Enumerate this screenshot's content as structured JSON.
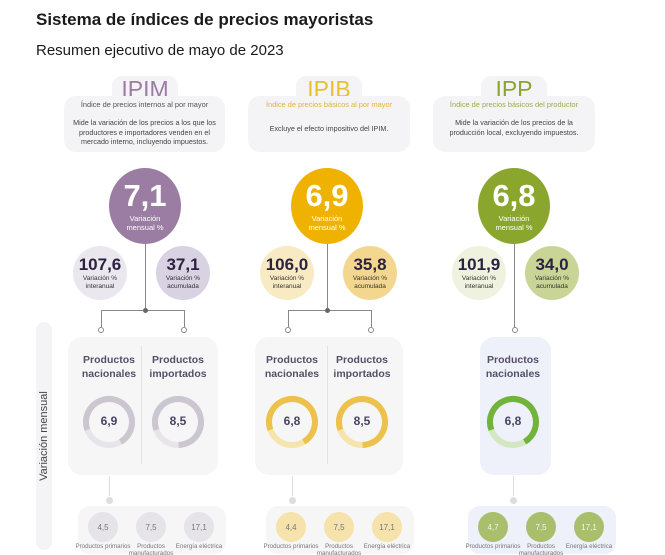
{
  "title": "Sistema de índices de precios mayoristas",
  "subtitle": "Resumen ejecutivo de mayo de 2023",
  "side_label": "Variación mensual",
  "indices": [
    {
      "name": "IPIM",
      "fullname": "Índice de precios internos al por mayor",
      "description": "Mide la variación de los precios a los que los productores e importadores venden en el mercado interno, incluyendo impuestos.",
      "color": "#9b7ca3",
      "monthly": "7,1",
      "monthly_label": "Variación mensual %",
      "interanual": "107,6",
      "interanual_label": "Variación % interanual",
      "acumulada": "37,1",
      "acumulada_label": "Variación % acumulada",
      "products": [
        {
          "label": "Productos nacionales",
          "value": "6,9",
          "fill": 0.72
        },
        {
          "label": "Productos importados",
          "value": "8,5",
          "fill": 0.8
        }
      ],
      "breakdown": [
        {
          "value": "4,5",
          "label": "Productos primarios"
        },
        {
          "value": "7,5",
          "label": "Productos manufacturados"
        },
        {
          "value": "17,1",
          "label": "Energía eléctrica"
        }
      ]
    },
    {
      "name": "IPIB",
      "fullname": "Índice de precios básicos al por mayor",
      "description": "Excluye el efecto impositivo del IPIM.",
      "color": "#efb200",
      "monthly": "6,9",
      "monthly_label": "Variación mensual %",
      "interanual": "106,0",
      "interanual_label": "Variación % interanual",
      "acumulada": "35,8",
      "acumulada_label": "Variación % acumulada",
      "products": [
        {
          "label": "Productos nacionales",
          "value": "6,8",
          "fill": 0.72
        },
        {
          "label": "Productos importados",
          "value": "8,5",
          "fill": 0.8
        }
      ],
      "breakdown": [
        {
          "value": "4,4",
          "label": "Productos primarios"
        },
        {
          "value": "7,5",
          "label": "Productos manufacturados"
        },
        {
          "value": "17,1",
          "label": "Energía eléctrica"
        }
      ]
    },
    {
      "name": "IPP",
      "fullname": "Índice de precios básicos del productor",
      "description": "Mide la variación de los precios de la producción local, excluyendo impuestos.",
      "color": "#8aa62c",
      "monthly": "6,8",
      "monthly_label": "Variación mensual %",
      "interanual": "101,9",
      "interanual_label": "Variación % interanual",
      "acumulada": "34,0",
      "acumulada_label": "Variación % acumulada",
      "products": [
        {
          "label": "Productos nacionales",
          "value": "6,8",
          "fill": 0.72
        }
      ],
      "breakdown": [
        {
          "value": "4,7",
          "label": "Productos primarios"
        },
        {
          "value": "7,5",
          "label": "Productos manufacturados"
        },
        {
          "value": "17,1",
          "label": "Energía eléctrica"
        }
      ]
    }
  ]
}
